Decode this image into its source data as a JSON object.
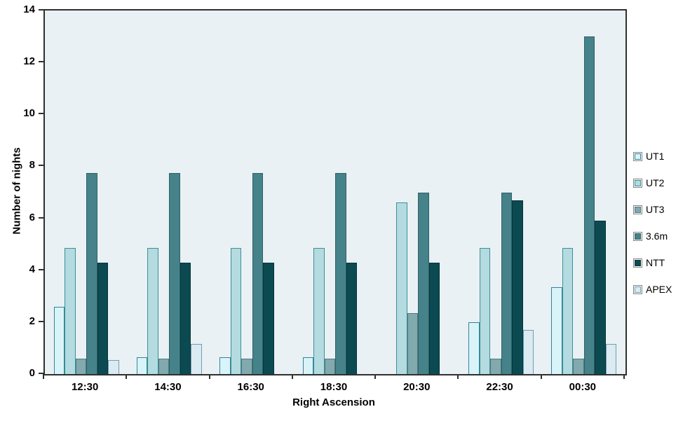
{
  "chart_data": {
    "type": "bar",
    "title": "",
    "xlabel": "Right Ascension",
    "ylabel": "Number of nights",
    "categories": [
      "12:30",
      "14:30",
      "16:30",
      "18:30",
      "20:30",
      "22:30",
      "00:30"
    ],
    "series": [
      {
        "name": "UT1",
        "color": "#D9F4F9",
        "border_color": "#31849B",
        "values": [
          2.6,
          0.65,
          0.65,
          0.65,
          0,
          2.0,
          3.35
        ]
      },
      {
        "name": "UT2",
        "color": "#B3DBE0",
        "border_color": "#3D8F99",
        "values": [
          4.85,
          4.85,
          4.85,
          4.85,
          6.6,
          4.85,
          4.85
        ]
      },
      {
        "name": "UT3",
        "color": "#81A9AE",
        "border_color": "#4E7A80",
        "values": [
          0.6,
          0.6,
          0.6,
          0.6,
          2.35,
          0.6,
          0.6
        ]
      },
      {
        "name": "3.6m",
        "color": "#45828A",
        "border_color": "#2F6168",
        "values": [
          7.75,
          7.75,
          7.75,
          7.75,
          7.0,
          7.0,
          13.0
        ]
      },
      {
        "name": "NTT",
        "color": "#0C4A52",
        "border_color": "#07343B",
        "values": [
          4.3,
          4.3,
          4.3,
          4.3,
          4.3,
          6.7,
          5.9
        ]
      },
      {
        "name": "APEX",
        "color": "#DCEAF2",
        "border_color": "#6D9EB4",
        "values": [
          0.55,
          1.15,
          0,
          0,
          0,
          1.7,
          1.15
        ]
      }
    ],
    "ylim": [
      0,
      14
    ],
    "ytick_step": 2,
    "ytick_labels": [
      "0",
      "2",
      "4",
      "6",
      "8",
      "10",
      "12",
      "14"
    ],
    "grid": false,
    "legend_position": "right",
    "plot_bg_color": "#E9F1F4",
    "axis_color": "#2F2F2F",
    "label_color": "#000000"
  }
}
